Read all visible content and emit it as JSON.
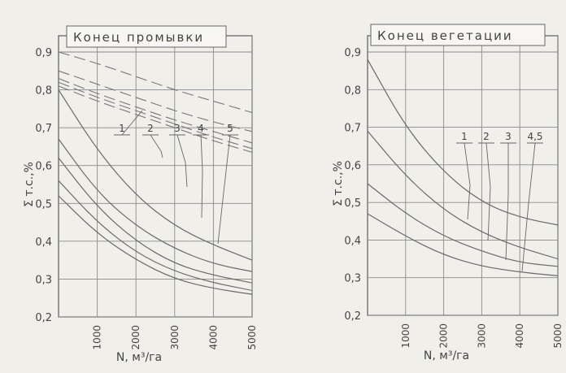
{
  "chart_data": [
    {
      "type": "line",
      "title": "Конец промывки",
      "xlabel": "N, м³/га",
      "ylabel": "Σ т.с.,%",
      "xlim": [
        0,
        5000
      ],
      "ylim": [
        0.2,
        0.9
      ],
      "x_ticks": [
        "1000",
        "2000",
        "3000",
        "4000",
        "5000"
      ],
      "y_ticks": [
        "0,2",
        "0,3",
        "0,4",
        "0,5",
        "0,6",
        "0,7",
        "0,8",
        "0,9"
      ],
      "curve_labels": [
        "1",
        "2",
        "3",
        "4",
        "5"
      ],
      "series": [
        {
          "style": "dashed",
          "x": [
            0,
            1000,
            2000,
            3000,
            4000,
            5000
          ],
          "y": [
            0.9,
            0.87,
            0.835,
            0.8,
            0.77,
            0.74
          ]
        },
        {
          "style": "dashed",
          "x": [
            0,
            1000,
            2000,
            3000,
            4000,
            5000
          ],
          "y": [
            0.85,
            0.815,
            0.78,
            0.745,
            0.715,
            0.69
          ]
        },
        {
          "style": "dashed",
          "x": [
            0,
            1000,
            2000,
            3000,
            4000,
            5000
          ],
          "y": [
            0.83,
            0.79,
            0.755,
            0.72,
            0.69,
            0.66
          ]
        },
        {
          "style": "dashed",
          "x": [
            0,
            1000,
            2000,
            3000,
            4000,
            5000
          ],
          "y": [
            0.82,
            0.78,
            0.745,
            0.71,
            0.675,
            0.645
          ]
        },
        {
          "style": "dashed",
          "x": [
            0,
            1000,
            2000,
            3000,
            4000,
            5000
          ],
          "y": [
            0.81,
            0.77,
            0.735,
            0.7,
            0.665,
            0.635
          ]
        },
        {
          "style": "solid",
          "x": [
            0,
            1000,
            2000,
            3000,
            4000,
            5000
          ],
          "y": [
            0.8,
            0.64,
            0.52,
            0.44,
            0.39,
            0.35
          ]
        },
        {
          "style": "solid",
          "x": [
            0,
            1000,
            2000,
            3000,
            4000,
            5000
          ],
          "y": [
            0.67,
            0.53,
            0.44,
            0.38,
            0.34,
            0.32
          ]
        },
        {
          "style": "solid",
          "x": [
            0,
            1000,
            2000,
            3000,
            4000,
            5000
          ],
          "y": [
            0.62,
            0.49,
            0.4,
            0.34,
            0.31,
            0.29
          ]
        },
        {
          "style": "solid",
          "x": [
            0,
            1000,
            2000,
            3000,
            4000,
            5000
          ],
          "y": [
            0.56,
            0.45,
            0.37,
            0.32,
            0.29,
            0.27
          ]
        },
        {
          "style": "solid",
          "x": [
            0,
            1000,
            2000,
            3000,
            4000,
            5000
          ],
          "y": [
            0.52,
            0.42,
            0.35,
            0.3,
            0.275,
            0.26
          ]
        }
      ]
    },
    {
      "type": "line",
      "title": "Конец вегетации",
      "xlabel": "N, м³/га",
      "ylabel": "Σ т.с.,%",
      "xlim": [
        0,
        5000
      ],
      "ylim": [
        0.2,
        0.9
      ],
      "x_ticks": [
        "1000",
        "2000",
        "3000",
        "4000",
        "5000"
      ],
      "y_ticks": [
        "0,2",
        "0,3",
        "0,4",
        "0,5",
        "0,6",
        "0,7",
        "0,8",
        "0,9"
      ],
      "curve_labels": [
        "1",
        "2",
        "3",
        "4,5"
      ],
      "series": [
        {
          "style": "solid",
          "x": [
            0,
            1000,
            2000,
            3000,
            4000,
            5000
          ],
          "y": [
            0.88,
            0.7,
            0.58,
            0.5,
            0.46,
            0.44
          ]
        },
        {
          "style": "solid",
          "x": [
            0,
            1000,
            2000,
            3000,
            4000,
            5000
          ],
          "y": [
            0.69,
            0.57,
            0.48,
            0.42,
            0.38,
            0.35
          ]
        },
        {
          "style": "solid",
          "x": [
            0,
            1000,
            2000,
            3000,
            4000,
            5000
          ],
          "y": [
            0.55,
            0.47,
            0.41,
            0.37,
            0.34,
            0.33
          ]
        },
        {
          "style": "solid",
          "x": [
            0,
            1000,
            2000,
            3000,
            4000,
            5000
          ],
          "y": [
            0.47,
            0.41,
            0.36,
            0.33,
            0.315,
            0.305
          ]
        }
      ]
    }
  ]
}
